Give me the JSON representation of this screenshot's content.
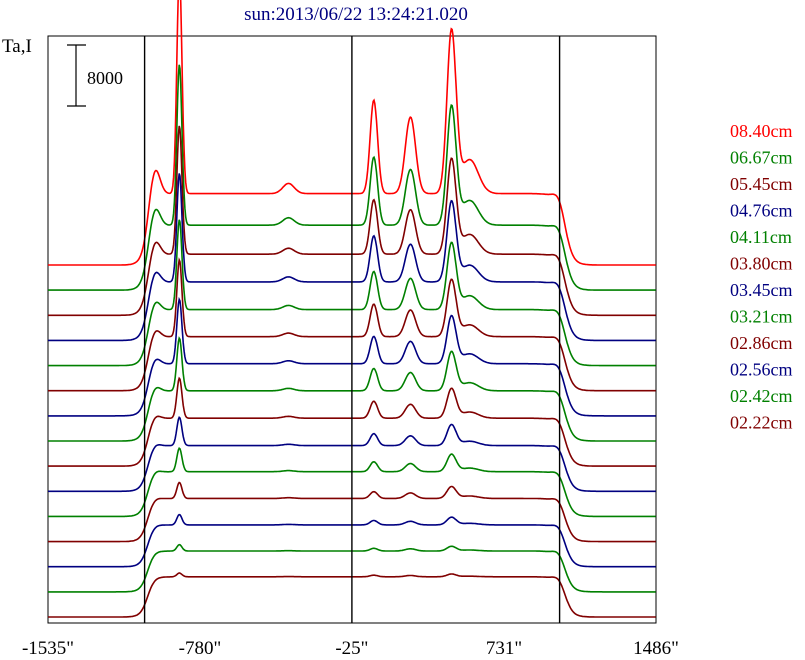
{
  "chart_data": {
    "type": "line",
    "title": "sun:2013/06/22 13:24:21.020",
    "ylabel": "Ta,I",
    "scale_bar_label": "8000",
    "xlabel": "",
    "x_tick_labels": [
      "-1535\"",
      "-780\"",
      "-25\"",
      "731\"",
      "1486\""
    ],
    "x_tick_values": [
      -1535,
      -780,
      -25,
      731,
      1486
    ],
    "xlim": [
      -1535,
      1486
    ],
    "vertical_markers": [
      -1055,
      -25,
      1007
    ],
    "vertical_marker_color": "#000000",
    "legend_position": "right",
    "series": [
      {
        "name": "08.40cm",
        "color": "#ff0000",
        "peak_scale": 1.0
      },
      {
        "name": "06.67cm",
        "color": "#008000",
        "peak_scale": 0.8
      },
      {
        "name": "05.45cm",
        "color": "#800000",
        "peak_scale": 0.68
      },
      {
        "name": "04.76cm",
        "color": "#000080",
        "peak_scale": 0.6
      },
      {
        "name": "04.11cm",
        "color": "#008000",
        "peak_scale": 0.52
      },
      {
        "name": "03.80cm",
        "color": "#800000",
        "peak_scale": 0.46
      },
      {
        "name": "03.45cm",
        "color": "#000080",
        "peak_scale": 0.4
      },
      {
        "name": "03.21cm",
        "color": "#008000",
        "peak_scale": 0.34
      },
      {
        "name": "02.86cm",
        "color": "#800000",
        "peak_scale": 0.27
      },
      {
        "name": "02.56cm",
        "color": "#000080",
        "peak_scale": 0.2
      },
      {
        "name": "02.42cm",
        "color": "#008000",
        "peak_scale": 0.17
      },
      {
        "name": "02.22cm",
        "color": "#800000",
        "peak_scale": 0.12
      },
      {
        "name": "",
        "color": "#000080",
        "peak_scale": 0.08
      },
      {
        "name": "",
        "color": "#008000",
        "peak_scale": 0.05
      },
      {
        "name": "",
        "color": "#800000",
        "peak_scale": 0.03
      }
    ]
  }
}
